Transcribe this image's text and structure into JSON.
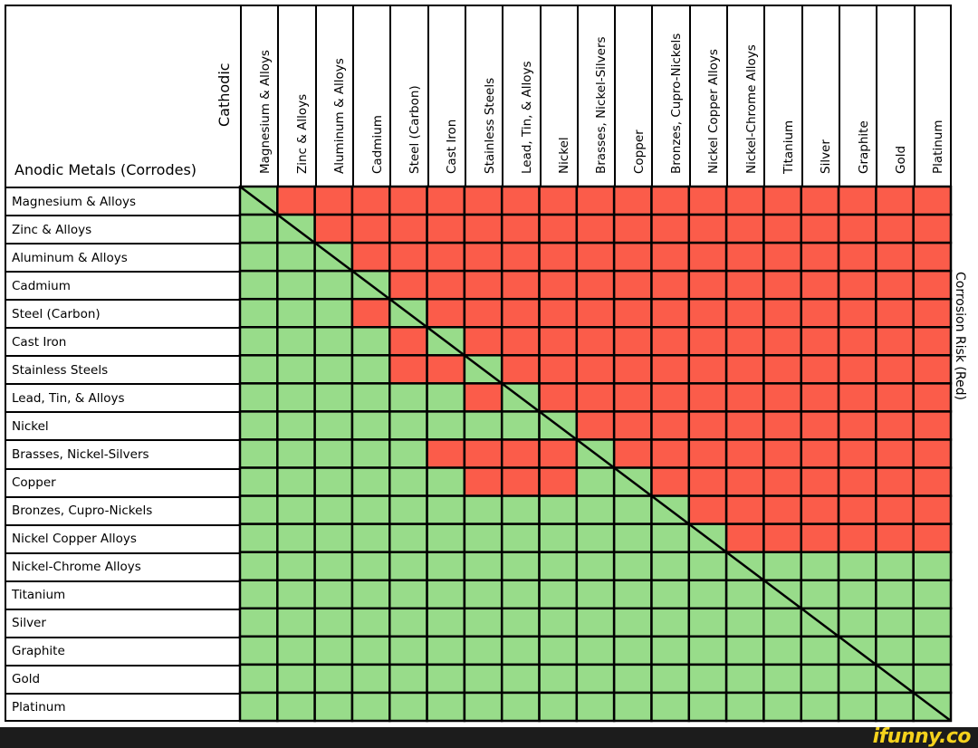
{
  "chart_data": {
    "type": "heatmap",
    "xlabel": "Cathodic",
    "ylabel": "Anodic Metals (Corrodes)",
    "legend": "Corrosion Risk (Red)",
    "colors": {
      "risk": "#fb5c4a",
      "safe": "#98dc8a",
      "grid": "#000000"
    },
    "diagonal_line": true,
    "columns": [
      "Magnesium & Alloys",
      "Zinc & Alloys",
      "Aluminum & Alloys",
      "Cadmium",
      "Steel (Carbon)",
      "Cast Iron",
      "Stainless Steels",
      "Lead, Tin, & Alloys",
      "Nickel",
      "Brasses, Nickel-Silvers",
      "Copper",
      "Bronzes, Cupro-Nickels",
      "Nickel Copper Alloys",
      "Nickel-Chrome Alloys",
      "Titanium",
      "Silver",
      "Graphite",
      "Gold",
      "Platinum"
    ],
    "rows": [
      "Magnesium & Alloys",
      "Zinc & Alloys",
      "Aluminum & Alloys",
      "Cadmium",
      "Steel (Carbon)",
      "Cast Iron",
      "Stainless Steels",
      "Lead, Tin, & Alloys",
      "Nickel",
      "Brasses, Nickel-Silvers",
      "Copper",
      "Bronzes, Cupro-Nickels",
      "Nickel Copper Alloys",
      "Nickel-Chrome Alloys",
      "Titanium",
      "Silver",
      "Graphite",
      "Gold",
      "Platinum"
    ],
    "risk_matrix": [
      [
        0,
        1,
        1,
        1,
        1,
        1,
        1,
        1,
        1,
        1,
        1,
        1,
        1,
        1,
        1,
        1,
        1,
        1,
        1
      ],
      [
        0,
        0,
        1,
        1,
        1,
        1,
        1,
        1,
        1,
        1,
        1,
        1,
        1,
        1,
        1,
        1,
        1,
        1,
        1
      ],
      [
        0,
        0,
        0,
        1,
        1,
        1,
        1,
        1,
        1,
        1,
        1,
        1,
        1,
        1,
        1,
        1,
        1,
        1,
        1
      ],
      [
        0,
        0,
        0,
        0,
        1,
        1,
        1,
        1,
        1,
        1,
        1,
        1,
        1,
        1,
        1,
        1,
        1,
        1,
        1
      ],
      [
        0,
        0,
        0,
        1,
        0,
        1,
        1,
        1,
        1,
        1,
        1,
        1,
        1,
        1,
        1,
        1,
        1,
        1,
        1
      ],
      [
        0,
        0,
        0,
        0,
        1,
        0,
        1,
        1,
        1,
        1,
        1,
        1,
        1,
        1,
        1,
        1,
        1,
        1,
        1
      ],
      [
        0,
        0,
        0,
        0,
        1,
        1,
        0,
        1,
        1,
        1,
        1,
        1,
        1,
        1,
        1,
        1,
        1,
        1,
        1
      ],
      [
        0,
        0,
        0,
        0,
        0,
        0,
        1,
        0,
        1,
        1,
        1,
        1,
        1,
        1,
        1,
        1,
        1,
        1,
        1
      ],
      [
        0,
        0,
        0,
        0,
        0,
        0,
        0,
        0,
        0,
        1,
        1,
        1,
        1,
        1,
        1,
        1,
        1,
        1,
        1
      ],
      [
        0,
        0,
        0,
        0,
        0,
        1,
        1,
        1,
        1,
        0,
        1,
        1,
        1,
        1,
        1,
        1,
        1,
        1,
        1
      ],
      [
        0,
        0,
        0,
        0,
        0,
        0,
        1,
        1,
        1,
        0,
        0,
        1,
        1,
        1,
        1,
        1,
        1,
        1,
        1
      ],
      [
        0,
        0,
        0,
        0,
        0,
        0,
        0,
        0,
        0,
        0,
        0,
        0,
        1,
        1,
        1,
        1,
        1,
        1,
        1
      ],
      [
        0,
        0,
        0,
        0,
        0,
        0,
        0,
        0,
        0,
        0,
        0,
        0,
        0,
        1,
        1,
        1,
        1,
        1,
        1
      ],
      [
        0,
        0,
        0,
        0,
        0,
        0,
        0,
        0,
        0,
        0,
        0,
        0,
        0,
        0,
        0,
        0,
        0,
        0,
        0
      ],
      [
        0,
        0,
        0,
        0,
        0,
        0,
        0,
        0,
        0,
        0,
        0,
        0,
        0,
        0,
        0,
        0,
        0,
        0,
        0
      ],
      [
        0,
        0,
        0,
        0,
        0,
        0,
        0,
        0,
        0,
        0,
        0,
        0,
        0,
        0,
        0,
        0,
        0,
        0,
        0
      ],
      [
        0,
        0,
        0,
        0,
        0,
        0,
        0,
        0,
        0,
        0,
        0,
        0,
        0,
        0,
        0,
        0,
        0,
        0,
        0
      ],
      [
        0,
        0,
        0,
        0,
        0,
        0,
        0,
        0,
        0,
        0,
        0,
        0,
        0,
        0,
        0,
        0,
        0,
        0,
        0
      ],
      [
        0,
        0,
        0,
        0,
        0,
        0,
        0,
        0,
        0,
        0,
        0,
        0,
        0,
        0,
        0,
        0,
        0,
        0,
        0
      ]
    ]
  },
  "watermark": "ifunny.co"
}
